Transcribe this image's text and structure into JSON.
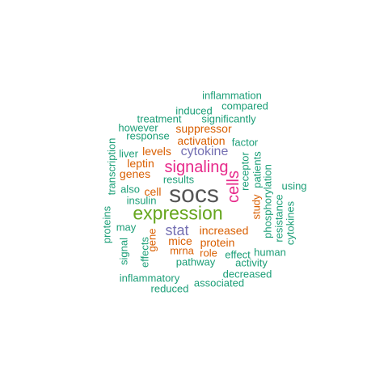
{
  "colors": {
    "teal": "#1b9e77",
    "orange": "#d95f02",
    "purple": "#7570b3",
    "magenta": "#e7298a",
    "green": "#66a61e",
    "gray": "#555555"
  },
  "words": [
    {
      "text": "socs",
      "color": "gray"
    },
    {
      "text": "expression",
      "color": "green"
    },
    {
      "text": "signaling",
      "color": "magenta"
    },
    {
      "text": "cells",
      "color": "magenta"
    },
    {
      "text": "stat",
      "color": "purple"
    },
    {
      "text": "cytokine",
      "color": "purple"
    },
    {
      "text": "increased",
      "color": "orange"
    },
    {
      "text": "protein",
      "color": "orange"
    },
    {
      "text": "mice",
      "color": "orange"
    },
    {
      "text": "leptin",
      "color": "orange"
    },
    {
      "text": "levels",
      "color": "orange"
    },
    {
      "text": "activation",
      "color": "orange"
    },
    {
      "text": "suppressor",
      "color": "orange"
    },
    {
      "text": "genes",
      "color": "orange"
    },
    {
      "text": "cell",
      "color": "orange"
    },
    {
      "text": "gene",
      "color": "orange"
    },
    {
      "text": "study",
      "color": "orange"
    },
    {
      "text": "role",
      "color": "orange"
    },
    {
      "text": "mrna",
      "color": "orange"
    },
    {
      "text": "inflammation",
      "color": "teal"
    },
    {
      "text": "compared",
      "color": "teal"
    },
    {
      "text": "induced",
      "color": "teal"
    },
    {
      "text": "treatment",
      "color": "teal"
    },
    {
      "text": "significantly",
      "color": "teal"
    },
    {
      "text": "however",
      "color": "teal"
    },
    {
      "text": "response",
      "color": "teal"
    },
    {
      "text": "factor",
      "color": "teal"
    },
    {
      "text": "liver",
      "color": "teal"
    },
    {
      "text": "results",
      "color": "teal"
    },
    {
      "text": "also",
      "color": "teal"
    },
    {
      "text": "insulin",
      "color": "teal"
    },
    {
      "text": "using",
      "color": "teal"
    },
    {
      "text": "may",
      "color": "teal"
    },
    {
      "text": "human",
      "color": "teal"
    },
    {
      "text": "pathway",
      "color": "teal"
    },
    {
      "text": "effect",
      "color": "teal"
    },
    {
      "text": "activity",
      "color": "teal"
    },
    {
      "text": "decreased",
      "color": "teal"
    },
    {
      "text": "inflammatory",
      "color": "teal"
    },
    {
      "text": "associated",
      "color": "teal"
    },
    {
      "text": "reduced",
      "color": "teal"
    },
    {
      "text": "transcription",
      "color": "teal"
    },
    {
      "text": "proteins",
      "color": "teal"
    },
    {
      "text": "signal",
      "color": "teal"
    },
    {
      "text": "effects",
      "color": "teal"
    },
    {
      "text": "receptor",
      "color": "teal"
    },
    {
      "text": "patients",
      "color": "teal"
    },
    {
      "text": "phosphorylation",
      "color": "teal"
    },
    {
      "text": "resistance",
      "color": "teal"
    },
    {
      "text": "cytokines",
      "color": "teal"
    }
  ]
}
